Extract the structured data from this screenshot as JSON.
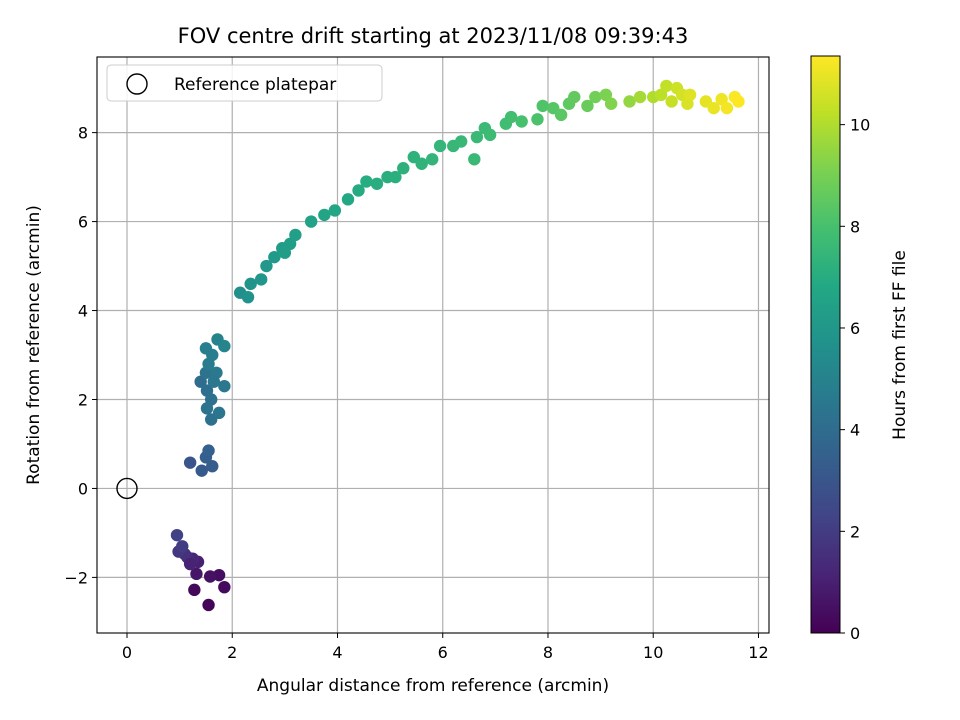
{
  "chart_data": {
    "type": "scatter",
    "title": "FOV centre drift starting at 2023/11/08 09:39:43",
    "xlabel": "Angular distance from reference (arcmin)",
    "ylabel": "Rotation from reference (arcmin)",
    "xlim": [
      -0.57,
      12.2
    ],
    "ylim": [
      -3.25,
      9.7
    ],
    "xticks": [
      0,
      2,
      4,
      6,
      8,
      10,
      12
    ],
    "yticks": [
      -2,
      0,
      2,
      4,
      6,
      8
    ],
    "xtick_labels": [
      "0",
      "2",
      "4",
      "6",
      "8",
      "10",
      "12"
    ],
    "ytick_labels": [
      "−2",
      "0",
      "2",
      "4",
      "6",
      "8"
    ],
    "grid": true,
    "legend": {
      "placement": "top-left",
      "entries": [
        "Reference platepar"
      ]
    },
    "reference_point": {
      "x": 0,
      "y": 0,
      "marker": "open-circle",
      "color": "#000000"
    },
    "colorbar": {
      "label": "Hours from first FF file",
      "range": [
        0,
        11.35
      ],
      "ticks": [
        0,
        2,
        4,
        6,
        8,
        10
      ],
      "tick_labels": [
        "0",
        "2",
        "4",
        "6",
        "8",
        "10"
      ],
      "colormap": "viridis"
    },
    "points": [
      [
        1.55,
        -2.62,
        0.1
      ],
      [
        1.28,
        -2.28,
        0.2
      ],
      [
        1.85,
        -2.22,
        0.3
      ],
      [
        1.75,
        -1.95,
        0.4
      ],
      [
        1.58,
        -1.98,
        0.5
      ],
      [
        1.32,
        -1.92,
        0.7
      ],
      [
        1.35,
        -1.65,
        1.0
      ],
      [
        1.25,
        -1.58,
        1.2
      ],
      [
        1.15,
        -1.55,
        1.4
      ],
      [
        1.1,
        -1.48,
        1.6
      ],
      [
        0.98,
        -1.42,
        1.8
      ],
      [
        1.05,
        -1.3,
        2.0
      ],
      [
        0.95,
        -1.05,
        2.2
      ],
      [
        1.2,
        -1.7,
        1.1
      ],
      [
        1.2,
        0.58,
        3.0
      ],
      [
        1.42,
        0.4,
        3.2
      ],
      [
        1.5,
        0.7,
        3.4
      ],
      [
        1.55,
        0.85,
        3.5
      ],
      [
        1.62,
        0.5,
        3.3
      ],
      [
        1.4,
        2.4,
        4.0
      ],
      [
        1.52,
        2.2,
        4.1
      ],
      [
        1.6,
        2.0,
        4.2
      ],
      [
        1.52,
        1.8,
        4.3
      ],
      [
        1.6,
        1.55,
        4.2
      ],
      [
        1.75,
        1.7,
        4.4
      ],
      [
        1.85,
        2.3,
        4.5
      ],
      [
        1.5,
        2.6,
        4.3
      ],
      [
        1.7,
        2.6,
        4.6
      ],
      [
        1.55,
        2.8,
        4.7
      ],
      [
        1.62,
        3.0,
        4.8
      ],
      [
        1.5,
        3.15,
        4.8
      ],
      [
        1.72,
        3.35,
        5.0
      ],
      [
        1.85,
        3.2,
        5.1
      ],
      [
        1.65,
        2.4,
        4.5
      ],
      [
        2.15,
        4.4,
        5.6
      ],
      [
        2.3,
        4.3,
        5.7
      ],
      [
        2.35,
        4.6,
        5.8
      ],
      [
        2.55,
        4.7,
        5.9
      ],
      [
        2.65,
        5.0,
        6.0
      ],
      [
        2.8,
        5.2,
        6.1
      ],
      [
        2.95,
        5.4,
        6.2
      ],
      [
        3.1,
        5.5,
        6.3
      ],
      [
        3.2,
        5.7,
        6.35
      ],
      [
        3.0,
        5.3,
        6.25
      ],
      [
        3.5,
        6.0,
        6.5
      ],
      [
        3.75,
        6.15,
        6.6
      ],
      [
        3.95,
        6.25,
        6.7
      ],
      [
        4.2,
        6.5,
        6.8
      ],
      [
        4.4,
        6.7,
        6.9
      ],
      [
        4.55,
        6.9,
        7.0
      ],
      [
        4.75,
        6.85,
        7.05
      ],
      [
        4.95,
        7.0,
        7.1
      ],
      [
        5.1,
        7.0,
        7.15
      ],
      [
        5.25,
        7.2,
        7.2
      ],
      [
        5.45,
        7.45,
        7.25
      ],
      [
        5.6,
        7.3,
        7.3
      ],
      [
        5.8,
        7.4,
        7.4
      ],
      [
        5.95,
        7.7,
        7.45
      ],
      [
        6.2,
        7.7,
        7.5
      ],
      [
        6.35,
        7.8,
        7.55
      ],
      [
        6.6,
        7.4,
        7.6
      ],
      [
        6.65,
        7.9,
        7.6
      ],
      [
        6.8,
        8.1,
        7.65
      ],
      [
        6.9,
        7.95,
        7.7
      ],
      [
        7.2,
        8.2,
        7.8
      ],
      [
        7.3,
        8.35,
        7.9
      ],
      [
        7.5,
        8.25,
        8.0
      ],
      [
        7.8,
        8.3,
        8.1
      ],
      [
        7.9,
        8.6,
        8.2
      ],
      [
        8.1,
        8.55,
        8.3
      ],
      [
        8.25,
        8.4,
        8.4
      ],
      [
        8.4,
        8.65,
        8.5
      ],
      [
        8.5,
        8.8,
        8.6
      ],
      [
        8.75,
        8.6,
        8.7
      ],
      [
        8.9,
        8.8,
        8.9
      ],
      [
        9.1,
        8.85,
        9.1
      ],
      [
        9.2,
        8.65,
        9.2
      ],
      [
        9.55,
        8.7,
        9.5
      ],
      [
        9.75,
        8.8,
        9.8
      ],
      [
        10.0,
        8.8,
        10.0
      ],
      [
        10.15,
        8.85,
        10.2
      ],
      [
        10.25,
        9.05,
        10.3
      ],
      [
        10.35,
        8.7,
        10.4
      ],
      [
        10.45,
        9.0,
        10.5
      ],
      [
        10.55,
        8.85,
        10.6
      ],
      [
        10.65,
        8.65,
        10.7
      ],
      [
        10.7,
        8.85,
        10.8
      ],
      [
        11.0,
        8.7,
        10.9
      ],
      [
        11.15,
        8.55,
        11.0
      ],
      [
        11.3,
        8.75,
        11.1
      ],
      [
        11.4,
        8.55,
        11.2
      ],
      [
        11.55,
        8.8,
        11.3
      ],
      [
        11.62,
        8.7,
        11.35
      ]
    ]
  }
}
